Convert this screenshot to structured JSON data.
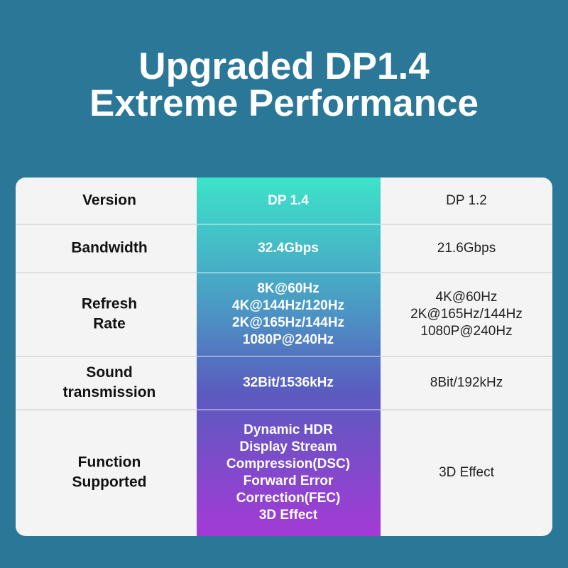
{
  "header": {
    "title": [
      "Upgraded DP1.4",
      "Extreme Performance"
    ]
  },
  "table": {
    "rows": [
      [
        [
          "Version"
        ],
        [
          "DP 1.4"
        ],
        [
          "DP 1.2"
        ]
      ],
      [
        [
          "Bandwidth"
        ],
        [
          "32.4Gbps"
        ],
        [
          "21.6Gbps"
        ]
      ],
      [
        [
          "Refresh",
          "Rate"
        ],
        [
          "8K@60Hz",
          "4K@144Hz/120Hz",
          "2K@165Hz/144Hz",
          "1080P@240Hz"
        ],
        [
          "4K@60Hz",
          "2K@165Hz/144Hz",
          "1080P@240Hz"
        ]
      ],
      [
        [
          "Sound",
          "transmission"
        ],
        [
          "32Bit/1536kHz"
        ],
        [
          "8Bit/192kHz"
        ]
      ],
      [
        [
          "Function",
          "Supported"
        ],
        [
          "Dynamic HDR",
          "Display Stream",
          "Compression(DSC)",
          "Forward Error",
          "Correction(FEC)",
          "3D Effect"
        ],
        [
          "3D Effect"
        ]
      ]
    ]
  }
}
